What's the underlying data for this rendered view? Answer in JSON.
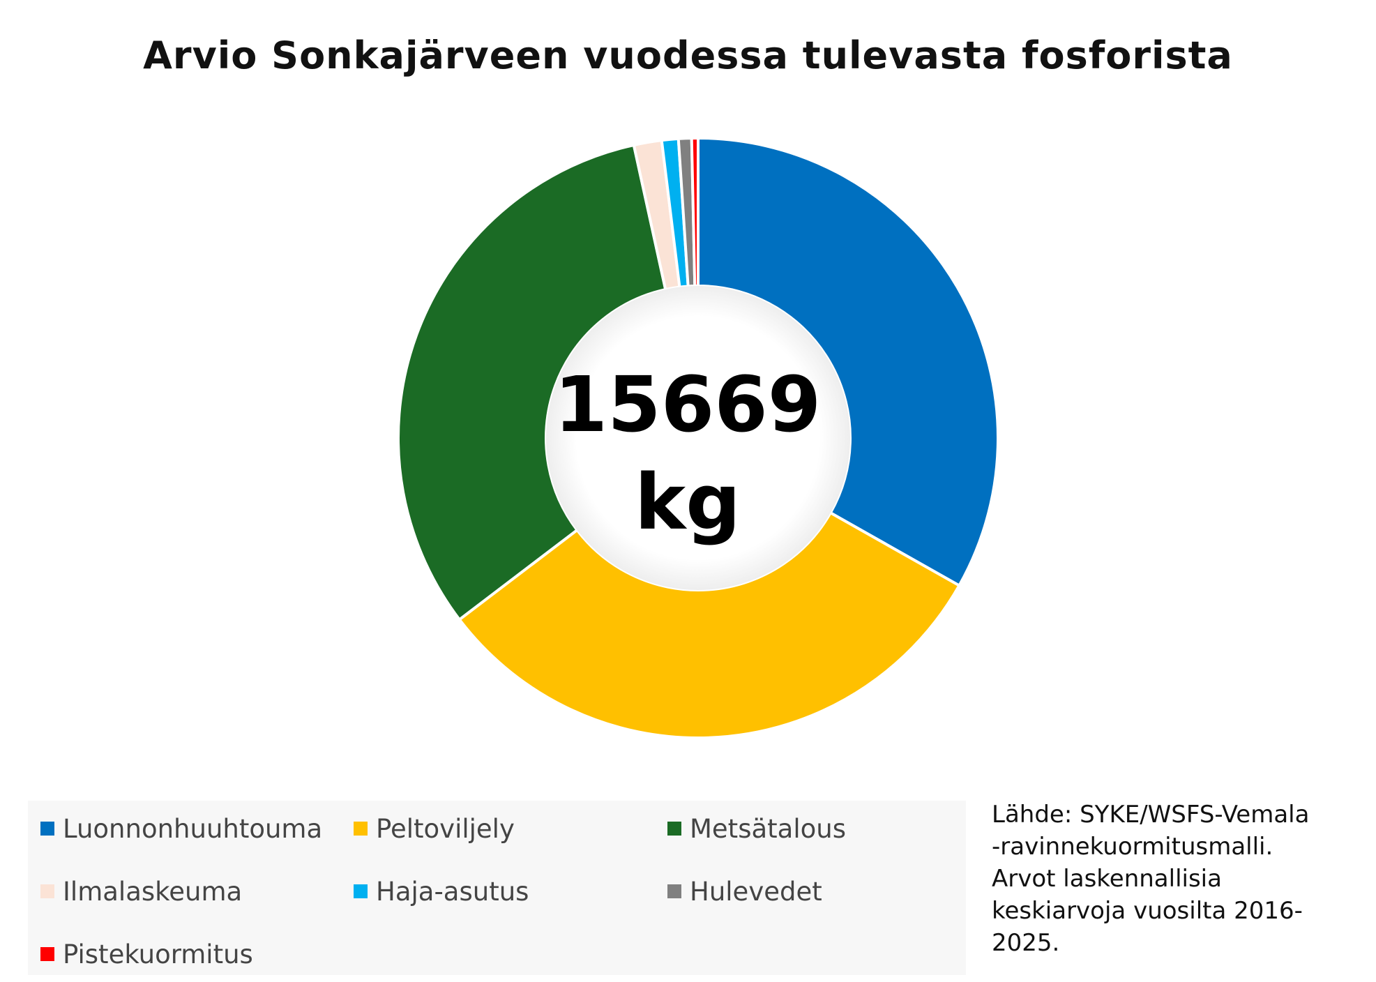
{
  "chart_data": {
    "type": "pie",
    "title": "Arvio Sonkajärveen vuodessa tulevasta fosforista",
    "center_label": {
      "value": "15669",
      "unit": "kg"
    },
    "slices": [
      {
        "label": "Luonnonhuuhtouma",
        "value": 5200,
        "color": "#0070c0"
      },
      {
        "label": "Peltoviljely",
        "value": 4930,
        "color": "#ffc000"
      },
      {
        "label": "Metsätalous",
        "value": 5000,
        "color": "#1b6b25"
      },
      {
        "label": "Ilmalaskeuma",
        "value": 235,
        "color": "#fbe3d6"
      },
      {
        "label": "Haja-asutus",
        "value": 140,
        "color": "#00b0f0"
      },
      {
        "label": "Hulevedet",
        "value": 110,
        "color": "#808080"
      },
      {
        "label": "Pistekuormitus",
        "value": 54,
        "color": "#ff0000"
      }
    ],
    "legend_position": "bottom-left"
  },
  "source_note": [
    "Lähde: SYKE/WSFS-Vemala",
    "-ravinnekuormitusmalli.",
    "Arvot laskennallisia",
    "keskiarvoja vuosilta 2016-",
    "2025."
  ]
}
